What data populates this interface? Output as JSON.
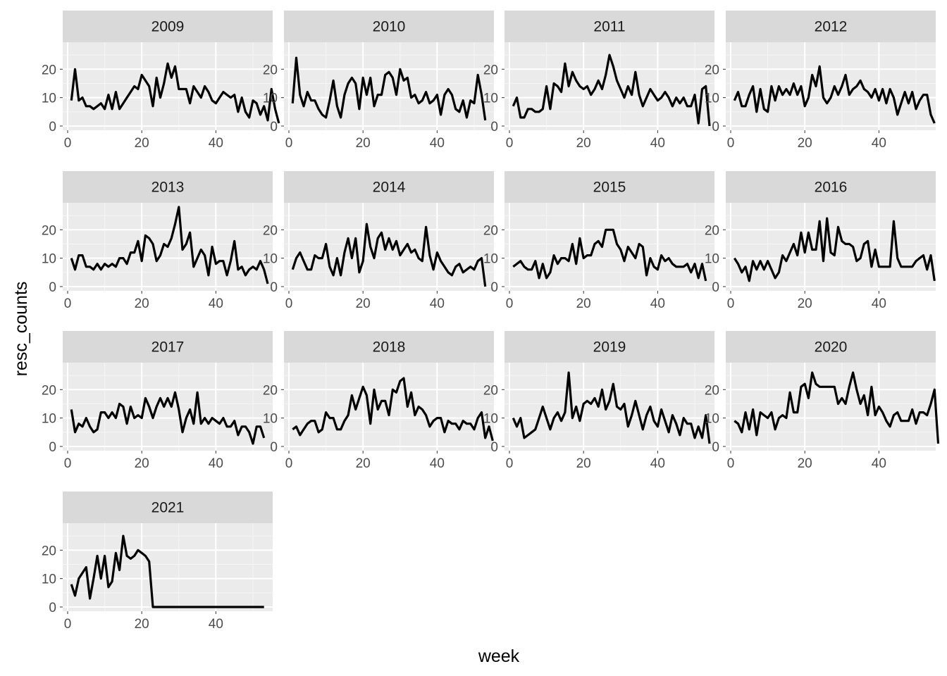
{
  "chart_data": {
    "type": "line",
    "facet_layout": "wrap",
    "ncol": 4,
    "xlabel": "week",
    "ylabel": "resc_counts",
    "xlim": [
      0,
      54
    ],
    "ylim": [
      0,
      28
    ],
    "xticks": [
      0,
      20,
      40
    ],
    "yticks": [
      0,
      10,
      20
    ],
    "grid": true,
    "line_color": "#000000",
    "panel_background": "#ebebeb",
    "strip_background": "#d9d9d9",
    "facets": [
      {
        "title": "2009",
        "x_start": 1,
        "values": [
          9,
          20,
          9,
          10,
          7,
          7,
          6,
          7,
          8,
          6,
          11,
          6,
          12,
          6,
          8,
          10,
          12,
          14,
          13,
          18,
          16,
          14,
          7,
          17,
          10,
          15,
          22,
          17,
          21,
          13,
          13,
          13,
          8,
          14,
          12,
          10,
          14,
          12,
          9,
          8,
          10,
          12,
          11,
          10,
          11,
          5,
          10,
          5,
          3,
          9,
          8,
          4,
          7,
          2,
          13,
          6,
          1
        ]
      },
      {
        "title": "2010",
        "x_start": 1,
        "values": [
          8,
          24,
          11,
          7,
          12,
          9,
          9,
          6,
          4,
          3,
          9,
          16,
          7,
          3,
          11,
          15,
          17,
          15,
          6,
          17,
          11,
          17,
          7,
          11,
          11,
          18,
          19,
          17,
          11,
          20,
          16,
          17,
          10,
          11,
          8,
          9,
          12,
          8,
          9,
          11,
          4,
          11,
          13,
          11,
          6,
          5,
          9,
          3,
          9,
          8,
          18,
          11,
          2
        ]
      },
      {
        "title": "2011",
        "x_start": 1,
        "values": [
          7,
          10,
          3,
          3,
          6,
          6,
          5,
          5,
          6,
          14,
          6,
          15,
          14,
          12,
          22,
          14,
          19,
          16,
          14,
          13,
          14,
          11,
          13,
          16,
          13,
          18,
          25,
          21,
          16,
          13,
          10,
          14,
          11,
          19,
          11,
          7,
          10,
          13,
          11,
          9,
          10,
          12,
          10,
          7,
          10,
          8,
          10,
          7,
          7,
          11,
          1,
          13,
          14,
          0
        ]
      },
      {
        "title": "2012",
        "x_start": 1,
        "values": [
          9,
          12,
          7,
          7,
          11,
          14,
          5,
          13,
          6,
          5,
          14,
          9,
          14,
          11,
          13,
          11,
          15,
          11,
          14,
          7,
          10,
          18,
          14,
          21,
          10,
          8,
          10,
          14,
          11,
          14,
          18,
          11,
          13,
          14,
          16,
          13,
          12,
          10,
          13,
          9,
          13,
          8,
          13,
          10,
          4,
          8,
          12,
          8,
          12,
          6,
          9,
          11,
          11,
          4,
          1
        ]
      },
      {
        "title": "2013",
        "x_start": 1,
        "values": [
          10,
          6,
          11,
          11,
          7,
          7,
          6,
          8,
          6,
          8,
          7,
          8,
          7,
          10,
          10,
          8,
          12,
          12,
          16,
          9,
          18,
          17,
          15,
          9,
          11,
          15,
          14,
          17,
          22,
          28,
          13,
          15,
          19,
          7,
          10,
          13,
          11,
          4,
          14,
          8,
          9,
          9,
          4,
          9,
          16,
          6,
          7,
          4,
          6,
          7,
          6,
          9,
          6,
          1
        ]
      },
      {
        "title": "2014",
        "x_start": 1,
        "values": [
          6,
          10,
          12,
          9,
          6,
          6,
          11,
          10,
          10,
          15,
          7,
          4,
          10,
          4,
          12,
          17,
          10,
          17,
          5,
          9,
          22,
          14,
          10,
          17,
          19,
          13,
          17,
          13,
          16,
          11,
          13,
          15,
          12,
          13,
          10,
          9,
          21,
          11,
          6,
          12,
          9,
          7,
          5,
          4,
          7,
          8,
          5,
          6,
          7,
          6,
          9,
          10,
          0
        ]
      },
      {
        "title": "2015",
        "x_start": 1,
        "values": [
          7,
          8,
          9,
          7,
          6,
          6,
          9,
          3,
          8,
          3,
          5,
          11,
          8,
          10,
          10,
          9,
          15,
          8,
          17,
          10,
          11,
          11,
          15,
          16,
          14,
          20,
          20,
          20,
          15,
          13,
          9,
          14,
          12,
          10,
          15,
          14,
          4,
          10,
          7,
          6,
          11,
          9,
          10,
          8,
          7,
          7,
          7,
          8,
          5,
          8,
          3,
          8,
          2
        ]
      },
      {
        "title": "2016",
        "x_start": 1,
        "values": [
          10,
          8,
          5,
          7,
          2,
          9,
          6,
          9,
          6,
          9,
          6,
          3,
          5,
          11,
          9,
          12,
          15,
          11,
          19,
          12,
          19,
          13,
          13,
          23,
          9,
          24,
          12,
          11,
          21,
          16,
          15,
          15,
          14,
          9,
          10,
          15,
          16,
          7,
          13,
          7,
          7,
          7,
          7,
          23,
          10,
          7,
          7,
          7,
          7,
          9,
          10,
          11,
          6,
          11,
          2
        ]
      },
      {
        "title": "2017",
        "x_start": 1,
        "values": [
          13,
          5,
          8,
          7,
          10,
          7,
          5,
          6,
          12,
          12,
          10,
          12,
          10,
          15,
          14,
          8,
          14,
          10,
          11,
          10,
          17,
          14,
          10,
          14,
          17,
          14,
          17,
          14,
          19,
          13,
          5,
          10,
          13,
          8,
          19,
          8,
          10,
          8,
          10,
          9,
          8,
          10,
          7,
          7,
          9,
          4,
          7,
          7,
          5,
          1,
          7,
          7,
          3
        ]
      },
      {
        "title": "2018",
        "x_start": 1,
        "values": [
          6,
          7,
          4,
          6,
          8,
          9,
          9,
          5,
          6,
          12,
          10,
          10,
          6,
          6,
          9,
          11,
          18,
          13,
          17,
          21,
          18,
          8,
          20,
          13,
          16,
          16,
          11,
          20,
          19,
          23,
          24,
          14,
          19,
          11,
          14,
          13,
          11,
          7,
          9,
          10,
          10,
          5,
          9,
          8,
          8,
          6,
          9,
          8,
          8,
          6,
          10,
          12,
          3,
          7,
          2
        ]
      },
      {
        "title": "2019",
        "x_start": 1,
        "values": [
          10,
          7,
          10,
          3,
          4,
          5,
          6,
          10,
          14,
          10,
          6,
          10,
          12,
          9,
          12,
          26,
          10,
          14,
          9,
          15,
          16,
          15,
          17,
          14,
          20,
          13,
          16,
          22,
          14,
          13,
          15,
          7,
          11,
          16,
          11,
          6,
          11,
          14,
          9,
          7,
          13,
          9,
          5,
          11,
          8,
          4,
          10,
          8,
          8,
          3,
          7,
          3,
          11,
          1
        ]
      },
      {
        "title": "2020",
        "x_start": 1,
        "values": [
          9,
          8,
          5,
          12,
          6,
          13,
          4,
          12,
          11,
          10,
          12,
          6,
          10,
          11,
          10,
          19,
          12,
          12,
          21,
          22,
          17,
          26,
          22,
          21,
          21,
          21,
          21,
          21,
          15,
          17,
          15,
          21,
          26,
          20,
          15,
          18,
          11,
          21,
          11,
          14,
          12,
          9,
          7,
          11,
          12,
          9,
          9,
          9,
          13,
          8,
          12,
          12,
          11,
          15,
          20,
          1
        ]
      },
      {
        "title": "2021",
        "x_start": 1,
        "values": [
          8,
          4,
          10,
          12,
          14,
          3,
          10,
          18,
          10,
          18,
          7,
          9,
          19,
          13,
          25,
          18,
          17,
          18,
          20,
          19,
          18,
          16,
          0,
          0,
          0,
          0,
          0,
          0,
          0,
          0,
          0,
          0,
          0,
          0,
          0,
          0,
          0,
          0,
          0,
          0,
          0,
          0,
          0,
          0,
          0,
          0,
          0,
          0,
          0,
          0,
          0,
          0,
          0
        ]
      }
    ]
  }
}
